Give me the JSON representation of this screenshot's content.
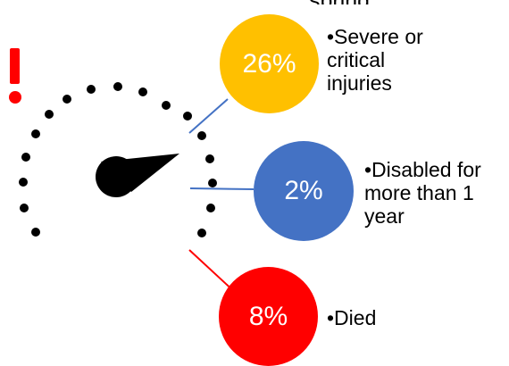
{
  "header": {
    "partial_text": "spring"
  },
  "callouts": [
    {
      "value": "26%",
      "label": "•Severe or\ncritical\ninjuries",
      "color": "#ffc000"
    },
    {
      "value": "2%",
      "label": "•Disabled for\nmore than 1\nyear",
      "color": "#4472c4"
    },
    {
      "value": "8%",
      "label": "•Died",
      "color": "#ff0000"
    }
  ],
  "colors": {
    "alert": "#ff0000",
    "gauge": "#000000",
    "connector_yellow": "#4472c4",
    "connector_blue": "#4472c4",
    "connector_red": "#ff0000"
  },
  "icons": [
    "exclamation-icon",
    "speedometer-gauge-icon"
  ]
}
